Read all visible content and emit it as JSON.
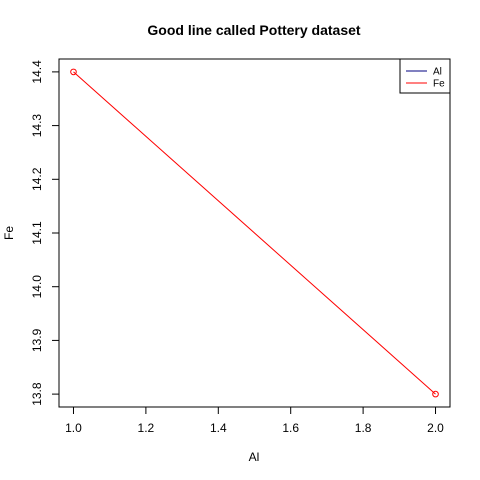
{
  "chart_data": {
    "type": "line",
    "title": "Good line called Pottery dataset",
    "xlabel": "Al",
    "ylabel": "Fe",
    "xlim": [
      0.96,
      2.04
    ],
    "ylim": [
      13.776,
      14.424
    ],
    "x_ticks": [
      1.0,
      1.2,
      1.4,
      1.6,
      1.8,
      2.0
    ],
    "x_tick_labels": [
      "1.0",
      "1.2",
      "1.4",
      "1.6",
      "1.8",
      "2.0"
    ],
    "y_ticks": [
      13.8,
      13.9,
      14.0,
      14.1,
      14.2,
      14.3,
      14.4
    ],
    "y_tick_labels": [
      "13.8",
      "13.9",
      "14.0",
      "14.1",
      "14.2",
      "14.3",
      "14.4"
    ],
    "grid": false,
    "legend_position": "top-right",
    "legend": [
      {
        "name": "Al",
        "color": "#000080"
      },
      {
        "name": "Fe",
        "color": "#ff0000"
      }
    ],
    "series": [
      {
        "name": "Fe",
        "color": "#ff0000",
        "x": [
          1,
          2
        ],
        "y": [
          14.4,
          13.8
        ],
        "markers": true
      }
    ]
  }
}
